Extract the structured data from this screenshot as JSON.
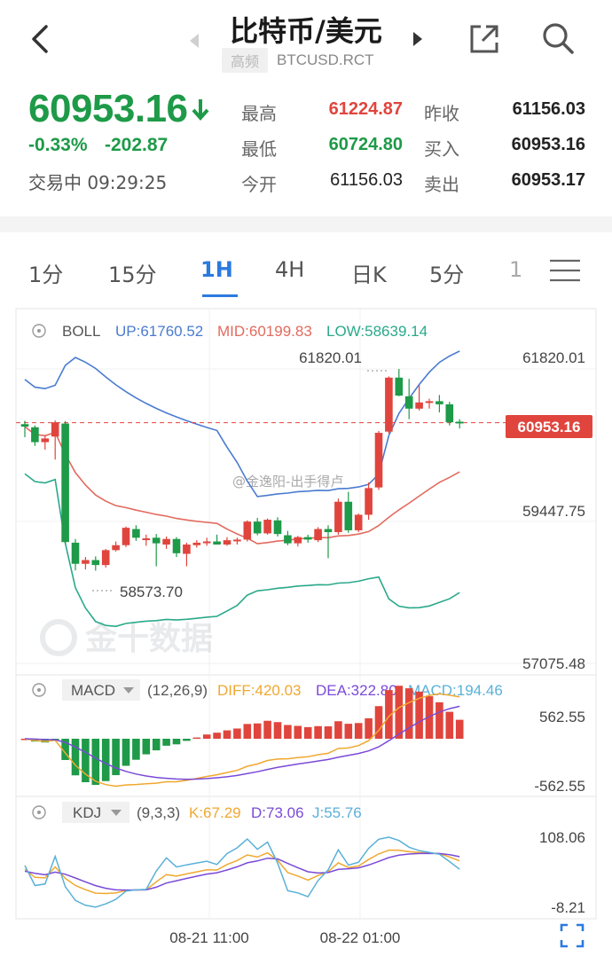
{
  "header": {
    "title": "比特币/美元",
    "tag": "高频",
    "code": "BTCUSD.RCT"
  },
  "quote": {
    "price": "60953.16",
    "change_pct": "-0.33%",
    "change_abs": "-202.87",
    "status": "交易中 09:29:25",
    "fields": [
      {
        "label": "最高",
        "value": "61224.87",
        "color": "red"
      },
      {
        "label": "最低",
        "value": "60724.80",
        "color": "green"
      },
      {
        "label": "今开",
        "value": "61156.03",
        "color": "dark"
      },
      {
        "label": "昨收",
        "value": "61156.03",
        "color": "dark"
      },
      {
        "label": "买入",
        "value": "60953.16",
        "color": "dark"
      },
      {
        "label": "卖出",
        "value": "60953.17",
        "color": "dark"
      }
    ]
  },
  "tabs": [
    {
      "label": "1分",
      "active": false
    },
    {
      "label": "15分",
      "active": false
    },
    {
      "label": "1H",
      "active": true
    },
    {
      "label": "4H",
      "active": false
    },
    {
      "label": "日K",
      "active": false
    },
    {
      "label": "5分",
      "active": false
    },
    {
      "label": "1",
      "active": false
    }
  ],
  "indicators": {
    "boll": {
      "name": "BOLL",
      "up": "UP:61760.52",
      "mid": "MID:60199.83",
      "low": "LOW:58639.14"
    },
    "macd": {
      "name": "MACD",
      "params": "(12,26,9)",
      "diff": "DIFF:420.03",
      "dea": "DEA:322.80",
      "macd": "MACD:194.46"
    },
    "kdj": {
      "name": "KDJ",
      "params": "(9,3,3)",
      "k": "K:67.29",
      "d": "D:73.06",
      "j": "J:55.76"
    }
  },
  "colors": {
    "up": "#e0453d",
    "down": "#1e9a48",
    "boll_up": "#4a7bd0",
    "boll_mid": "#e36a5e",
    "boll_low": "#2aa98a",
    "diff": "#f0a830",
    "dea": "#7a4ad8",
    "k": "#f0a830",
    "d": "#7a4ad8",
    "j": "#5ab0d8"
  },
  "watermark": {
    "brand": "金十数据",
    "weibo": "@金逸阳-出手得卢"
  },
  "chart_data": {
    "type": "candlestick",
    "y_axis_labels": [
      "61820.01",
      "59447.75",
      "57075.48"
    ],
    "y_max": 61820.01,
    "y_min": 57075.48,
    "current_price": "60953.16",
    "high_marker": "61820.01",
    "low_marker": "58573.70",
    "x_labels": [
      "08-21 11:00",
      "08-22 01:00"
    ],
    "macd_axis": [
      "562.55",
      "-562.55"
    ],
    "kdj_axis": [
      "108.06",
      "-8.21"
    ],
    "candles": [
      [
        60930,
        60985,
        60720,
        60890
      ],
      [
        60880,
        60910,
        60580,
        60640
      ],
      [
        60640,
        60750,
        60520,
        60700
      ],
      [
        60730,
        60990,
        60360,
        60960
      ],
      [
        60940,
        60980,
        59000,
        59030
      ],
      [
        59020,
        59080,
        58573.7,
        58680
      ],
      [
        58680,
        58790,
        58590,
        58740
      ],
      [
        58740,
        58800,
        58570,
        58660
      ],
      [
        58660,
        58920,
        58620,
        58900
      ],
      [
        58900,
        59040,
        58880,
        58980
      ],
      [
        58980,
        59280,
        58950,
        59260
      ],
      [
        59240,
        59300,
        59050,
        59100
      ],
      [
        59080,
        59150,
        58970,
        59090
      ],
      [
        59100,
        59160,
        58640,
        59010
      ],
      [
        58990,
        59120,
        58920,
        59080
      ],
      [
        59080,
        59110,
        58790,
        58850
      ],
      [
        58840,
        59020,
        58640,
        58990
      ],
      [
        58980,
        59060,
        58940,
        59020
      ],
      [
        59020,
        59100,
        58970,
        59040
      ],
      [
        59040,
        59150,
        58990,
        58990
      ],
      [
        58990,
        59110,
        58970,
        59060
      ],
      [
        59050,
        59100,
        58990,
        59070
      ],
      [
        59070,
        59380,
        59040,
        59360
      ],
      [
        59360,
        59420,
        59140,
        59170
      ],
      [
        59170,
        59410,
        59150,
        59390
      ],
      [
        59380,
        59430,
        59120,
        59160
      ],
      [
        59140,
        59210,
        58980,
        59010
      ],
      [
        59010,
        59130,
        58960,
        59110
      ],
      [
        59110,
        59150,
        59020,
        59070
      ],
      [
        59060,
        59270,
        59030,
        59240
      ],
      [
        59240,
        59300,
        58770,
        59190
      ],
      [
        59190,
        59730,
        59150,
        59680
      ],
      [
        59680,
        59840,
        59180,
        59220
      ],
      [
        59220,
        59490,
        59190,
        59470
      ],
      [
        59470,
        59990,
        59390,
        59900
      ],
      [
        59910,
        60820,
        59870,
        60790
      ],
      [
        60810,
        61700,
        60780,
        61680
      ],
      [
        61680,
        61820.01,
        61380,
        61390
      ],
      [
        61380,
        61660,
        61010,
        61180
      ],
      [
        61180,
        61560,
        61150,
        61280
      ],
      [
        61280,
        61340,
        61180,
        61300
      ],
      [
        61300,
        61400,
        61120,
        61250
      ],
      [
        61250,
        61290,
        60910,
        60960
      ],
      [
        60970,
        61010,
        60860,
        60953.16
      ]
    ]
  }
}
